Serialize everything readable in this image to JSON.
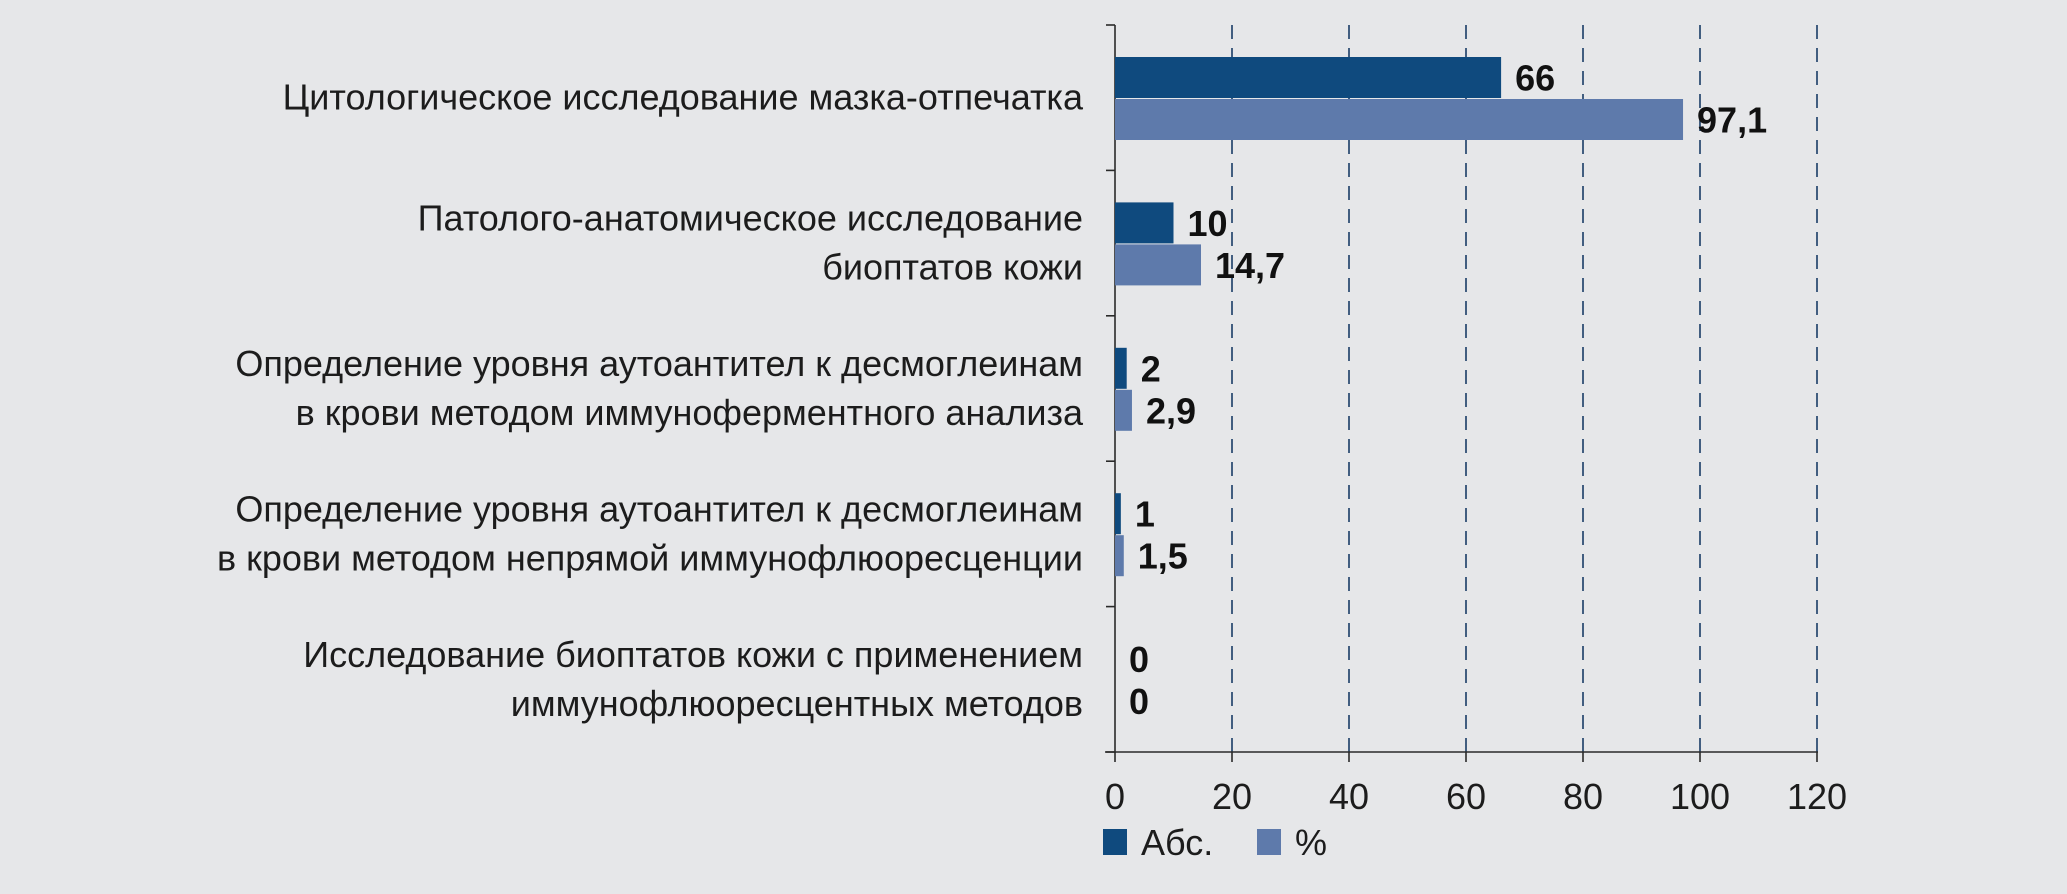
{
  "chart_data": {
    "type": "bar",
    "orientation": "horizontal",
    "categories": [
      [
        "Цитологическое исследование мазка-отпечатка"
      ],
      [
        "Патолого-анатомическое исследование",
        "биоптатов кожи"
      ],
      [
        "Определение уровня аутоантител к десмоглеинам",
        "в крови методом иммуноферментного анализа"
      ],
      [
        "Определение уровня аутоантител к десмоглеинам",
        "в крови методом непрямой иммунофлюоресценции"
      ],
      [
        "Исследование биоптатов кожи с применением",
        "иммунофлюоресцентных методов"
      ]
    ],
    "series": [
      {
        "name": "Абс.",
        "color": "#0f4a7e",
        "values": [
          66,
          10,
          2,
          1,
          0
        ],
        "labels": [
          "66",
          "10",
          "2",
          "1",
          "0"
        ]
      },
      {
        "name": "%",
        "color": "#5e7aab",
        "values": [
          97.1,
          14.7,
          2.9,
          1.5,
          0
        ],
        "labels": [
          "97,1",
          "14,7",
          "2,9",
          "1,5",
          "0"
        ]
      }
    ],
    "xlim": [
      0,
      120
    ],
    "xticks": [
      0,
      20,
      40,
      60,
      80,
      100,
      120
    ],
    "grid": "vertical dashed",
    "legend_position": "bottom"
  }
}
